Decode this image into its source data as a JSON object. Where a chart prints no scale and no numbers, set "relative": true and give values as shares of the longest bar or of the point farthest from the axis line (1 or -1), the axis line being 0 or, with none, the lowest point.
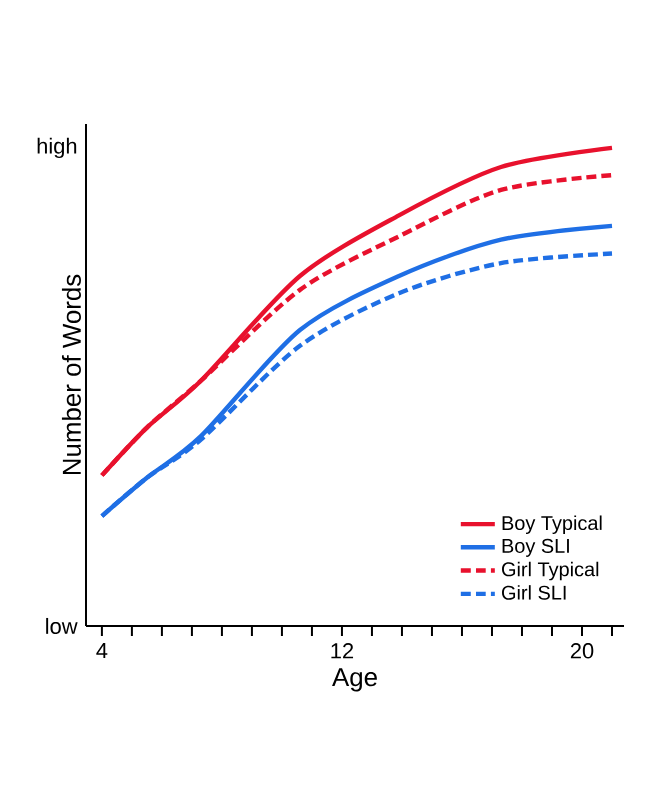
{
  "chart_data": {
    "type": "line",
    "xlabel": "Age",
    "ylabel": "Number of Words",
    "x": [
      4,
      5.5,
      7.3,
      10.6,
      13.9,
      17.3,
      21
    ],
    "series": [
      {
        "name": "Boy Typical",
        "color": "#e8112d",
        "line_style": "solid",
        "values": [
          0.315,
          0.415,
          0.513,
          0.732,
          0.859,
          0.96,
          1
        ]
      },
      {
        "name": "Boy SLI",
        "color": "#1f6fe5",
        "line_style": "solid",
        "values": [
          0.23,
          0.31,
          0.397,
          0.619,
          0.732,
          0.808,
          0.837
        ]
      },
      {
        "name": "Girl Typical",
        "color": "#e8112d",
        "line_style": "dashed",
        "values": [
          0.315,
          0.415,
          0.513,
          0.703,
          0.815,
          0.912,
          0.943
        ]
      },
      {
        "name": "Girl SLI",
        "color": "#1f6fe5",
        "line_style": "dashed",
        "values": [
          0.23,
          0.31,
          0.39,
          0.586,
          0.696,
          0.759,
          0.779
        ]
      }
    ],
    "relative": true,
    "annotations": [
      "low",
      "high"
    ],
    "xlim": [
      3.47,
      21.4
    ],
    "xticks": [
      4,
      {
        "value": 5,
        "label": null
      },
      {
        "value": 6,
        "label": null
      },
      {
        "value": 7,
        "label": null
      },
      {
        "value": 8,
        "label": null
      },
      {
        "value": 9,
        "label": null
      },
      {
        "value": 10,
        "label": null
      },
      {
        "value": 11,
        "label": null
      },
      12,
      {
        "value": 13,
        "label": null
      },
      {
        "value": 14,
        "label": null
      },
      {
        "value": 15,
        "label": null
      },
      {
        "value": 16,
        "label": null
      },
      {
        "value": 17,
        "label": null
      },
      {
        "value": 18,
        "label": null
      },
      {
        "value": 19,
        "label": null
      },
      20,
      {
        "value": 21,
        "label": null
      }
    ],
    "legend": "bottom right"
  }
}
